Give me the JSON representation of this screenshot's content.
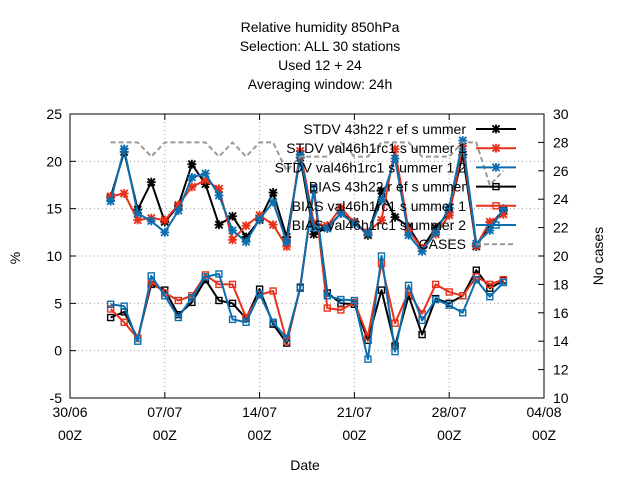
{
  "chart_data": {
    "type": "line",
    "title_lines": [
      "Relative humidity 850hPa",
      "Selection: ALL     30 stations",
      "Used  12  + 24",
      "Averaging window: 24h"
    ],
    "xlabel": "Date",
    "ylabel": "%",
    "y2label": "No cases",
    "ylim": [
      -5,
      25
    ],
    "y2lim": [
      10,
      30
    ],
    "xlim": [
      0,
      35
    ],
    "yticks": [
      -5,
      0,
      5,
      10,
      15,
      20,
      25
    ],
    "y2ticks": [
      10,
      12,
      14,
      16,
      18,
      20,
      22,
      24,
      26,
      28,
      30
    ],
    "xticks": [
      {
        "x": 0,
        "label1": "30/06",
        "label2": "00Z"
      },
      {
        "x": 7,
        "label1": "07/07",
        "label2": "00Z"
      },
      {
        "x": 14,
        "label1": "14/07",
        "label2": "00Z"
      },
      {
        "x": 21,
        "label1": "21/07",
        "label2": "00Z"
      },
      {
        "x": 28,
        "label1": "28/07",
        "label2": "00Z"
      },
      {
        "x": 35,
        "label1": "04/08",
        "label2": "00Z"
      }
    ],
    "grid": true,
    "legend_position": "top-right",
    "x": [
      3,
      4,
      5,
      6,
      7,
      8,
      9,
      10,
      11,
      12,
      13,
      14,
      15,
      16,
      17,
      18,
      19,
      20,
      21,
      22,
      23,
      24,
      25,
      26,
      27,
      28,
      29,
      30,
      31,
      32
    ],
    "series": [
      {
        "name": "STDV 43h22 r ef s ummer",
        "axis": "y",
        "color": "#000000",
        "marker": "star",
        "values": [
          16.2,
          21.0,
          14.9,
          17.8,
          13.6,
          15.3,
          19.7,
          17.6,
          13.3,
          14.2,
          12.0,
          13.8,
          16.7,
          12.0,
          20.4,
          12.3,
          13.0,
          14.5,
          13.6,
          12.2,
          16.9,
          14.1,
          13.1,
          10.8,
          13.0,
          14.6,
          20.7,
          11.0,
          13.3,
          14.8
        ]
      },
      {
        "name": "STDV val46h1rc1 s ummer 1",
        "axis": "y",
        "color": "#e8311a",
        "marker": "star",
        "values": [
          16.3,
          16.6,
          13.8,
          14.0,
          13.8,
          15.4,
          17.3,
          18.0,
          17.1,
          11.7,
          13.2,
          14.3,
          13.3,
          11.0,
          21.1,
          13.5,
          13.2,
          15.1,
          13.5,
          12.5,
          13.8,
          21.3,
          12.7,
          10.8,
          12.3,
          14.3,
          21.6,
          11.1,
          13.6,
          14.4
        ]
      },
      {
        "name": "STDV val46h1rc1 s ummer 1 2",
        "axis": "y",
        "color": "#0b6eae",
        "marker": "star",
        "values": [
          15.8,
          21.3,
          14.5,
          13.7,
          12.5,
          14.8,
          18.3,
          18.7,
          16.4,
          12.7,
          11.5,
          13.9,
          15.7,
          11.5,
          20.7,
          13.0,
          12.9,
          14.5,
          13.4,
          12.4,
          15.9,
          20.3,
          12.2,
          10.5,
          12.5,
          15.1,
          22.2,
          11.3,
          12.7,
          15.0
        ]
      },
      {
        "name": "BIAS 43h22 r ef s ummer",
        "axis": "y",
        "color": "#000000",
        "marker": "square",
        "values": [
          3.5,
          4.1,
          1.3,
          7.0,
          6.4,
          3.8,
          5.1,
          7.5,
          5.3,
          5.0,
          3.4,
          6.5,
          2.8,
          0.8,
          6.7,
          17.0,
          6.1,
          5.0,
          4.9,
          1.1,
          6.4,
          0.5,
          5.8,
          1.7,
          5.5,
          5.0,
          5.8,
          8.5,
          6.6,
          7.4
        ]
      },
      {
        "name": "BIAS val46h1rc1 s ummer 1",
        "axis": "y",
        "color": "#e8311a",
        "marker": "square",
        "values": [
          4.4,
          3.0,
          1.3,
          7.3,
          6.1,
          5.3,
          5.8,
          8.0,
          7.0,
          7.0,
          3.5,
          5.9,
          6.3,
          1.0,
          6.6,
          17.1,
          4.5,
          4.3,
          5.1,
          1.5,
          9.2,
          2.9,
          6.2,
          3.9,
          7.0,
          6.2,
          5.8,
          7.8,
          7.0,
          7.5
        ]
      },
      {
        "name": "BIAS val46h1rc1 s ummer 2",
        "axis": "y",
        "color": "#0b6eae",
        "marker": "square",
        "values": [
          4.9,
          4.7,
          1.0,
          7.9,
          5.8,
          3.5,
          5.6,
          7.8,
          8.1,
          3.3,
          3.0,
          6.0,
          3.0,
          1.3,
          6.6,
          17.2,
          5.8,
          5.4,
          5.3,
          -0.9,
          10.0,
          -0.1,
          6.9,
          3.2,
          5.4,
          4.8,
          4.0,
          7.5,
          5.7,
          7.2
        ]
      },
      {
        "name": "CASES",
        "axis": "y2",
        "color": "#999999",
        "marker": "none",
        "dashed": true,
        "values": [
          28,
          28,
          28,
          27,
          28,
          28,
          28,
          28,
          27,
          28,
          27,
          28,
          28,
          26,
          27,
          27,
          27,
          28,
          27,
          27,
          28,
          28,
          28,
          27,
          27,
          27,
          28,
          28,
          25,
          26
        ]
      }
    ]
  }
}
